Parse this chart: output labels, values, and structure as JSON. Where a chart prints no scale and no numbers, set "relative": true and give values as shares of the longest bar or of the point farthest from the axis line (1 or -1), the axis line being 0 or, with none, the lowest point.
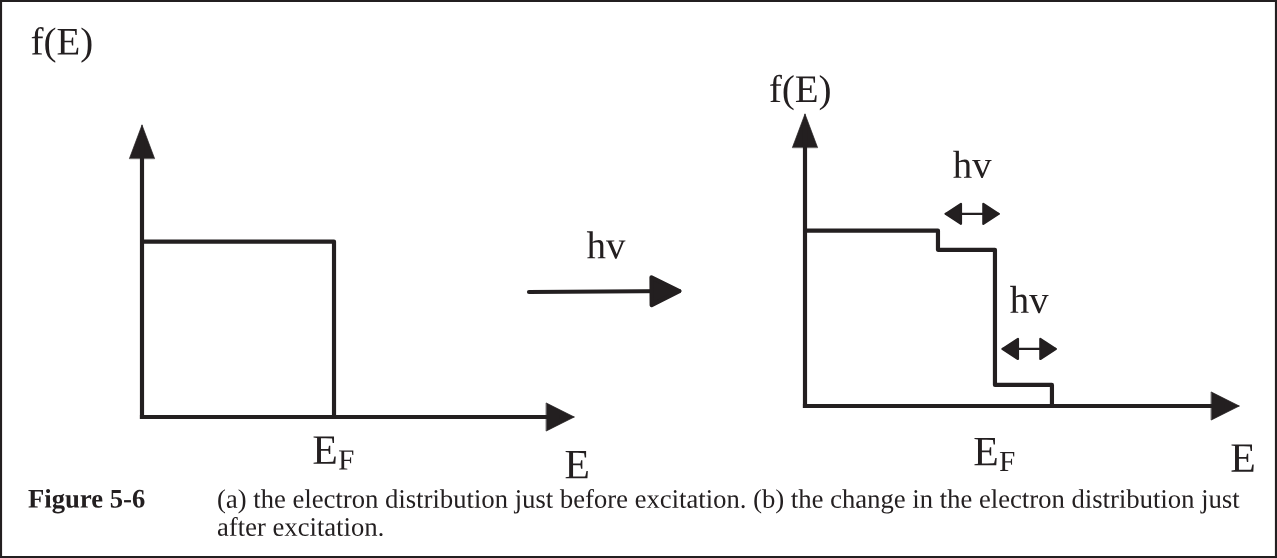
{
  "chart_data": [
    {
      "type": "step",
      "xlabel": "E",
      "ylabel": "f(E)",
      "relative": true,
      "categories": [
        null,
        null,
        null,
        null,
        null,
        null,
        null,
        null,
        null,
        null,
        null
      ],
      "values": [
        1,
        1,
        1,
        1,
        1,
        1,
        1,
        1,
        1,
        1,
        0
      ],
      "color": "#231f20",
      "annotations": [
        "E$_{F}$",
        "hv"
      ]
    },
    {
      "type": "step",
      "xlabel": "E",
      "ylabel": "f(E)",
      "relative": true,
      "categories": [
        null,
        null,
        null,
        null,
        null,
        null,
        null,
        null,
        null,
        null,
        null,
        null,
        null,
        null
      ],
      "values": [
        1,
        1,
        1,
        1,
        1,
        1,
        1,
        0.89,
        0.89,
        0.89,
        0.12,
        0.12,
        0.12,
        0
      ],
      "color": "#231f20",
      "annotations": [
        "hv",
        "hv",
        "E$_{F}$",
        "Figure 5-6",
        "(a) the electron distribution just before excitation. (b) the change in the electron distribution just after excitation."
      ]
    }
  ]
}
